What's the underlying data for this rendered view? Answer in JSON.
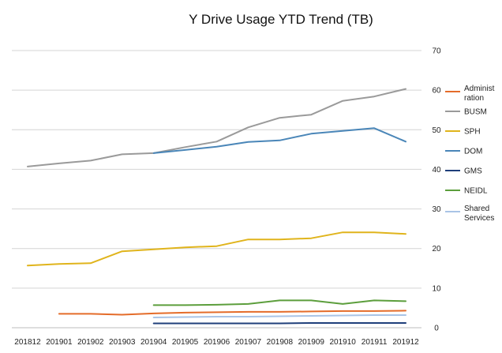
{
  "chart_data": {
    "type": "line",
    "title": "Y Drive Usage YTD Trend (TB)",
    "xlabel": "",
    "ylabel": "",
    "categories": [
      "201812",
      "201901",
      "201902",
      "201903",
      "201904",
      "201905",
      "201906",
      "201907",
      "201908",
      "201909",
      "201910",
      "201911",
      "201912"
    ],
    "ylim": [
      0,
      70
    ],
    "yticks": [
      "0",
      "10",
      "20",
      "30",
      "40",
      "50",
      "60",
      "70"
    ],
    "grid": true,
    "legend_position": "right",
    "y_axis_side": "right",
    "series": [
      {
        "name": "Administ\nration",
        "color": "#e46c2a",
        "values": [
          null,
          3.5,
          3.5,
          3.3,
          3.6,
          3.8,
          3.9,
          4.0,
          4.0,
          4.1,
          4.2,
          4.2,
          4.3
        ]
      },
      {
        "name": "BUSM",
        "color": "#9a9a9a",
        "values": [
          40.7,
          41.5,
          42.2,
          43.8,
          44.1,
          45.6,
          47.0,
          50.6,
          53.0,
          53.8,
          57.3,
          58.4,
          60.3
        ]
      },
      {
        "name": "SPH",
        "color": "#e0b41c",
        "values": [
          15.7,
          16.1,
          16.3,
          19.3,
          19.8,
          20.3,
          20.6,
          22.3,
          22.3,
          22.6,
          24.1,
          24.1,
          23.7
        ]
      },
      {
        "name": "DOM",
        "color": "#4a86b8",
        "values": [
          null,
          null,
          null,
          null,
          44.1,
          44.9,
          45.7,
          46.9,
          47.3,
          49.0,
          49.7,
          50.4,
          47.0
        ]
      },
      {
        "name": "GMS",
        "color": "#1f3f7a",
        "values": [
          null,
          null,
          null,
          null,
          1.1,
          1.1,
          1.1,
          1.1,
          1.1,
          1.2,
          1.2,
          1.2,
          1.2
        ]
      },
      {
        "name": "NEIDL",
        "color": "#5c9e3c",
        "values": [
          null,
          null,
          null,
          null,
          5.7,
          5.7,
          5.8,
          6.0,
          6.9,
          6.9,
          6.0,
          6.9,
          6.7
        ]
      },
      {
        "name": "Shared\nServices",
        "color": "#a9c4e6",
        "values": [
          null,
          null,
          null,
          null,
          2.6,
          2.7,
          2.8,
          2.8,
          2.9,
          3.0,
          3.1,
          3.2,
          3.2
        ]
      }
    ]
  }
}
